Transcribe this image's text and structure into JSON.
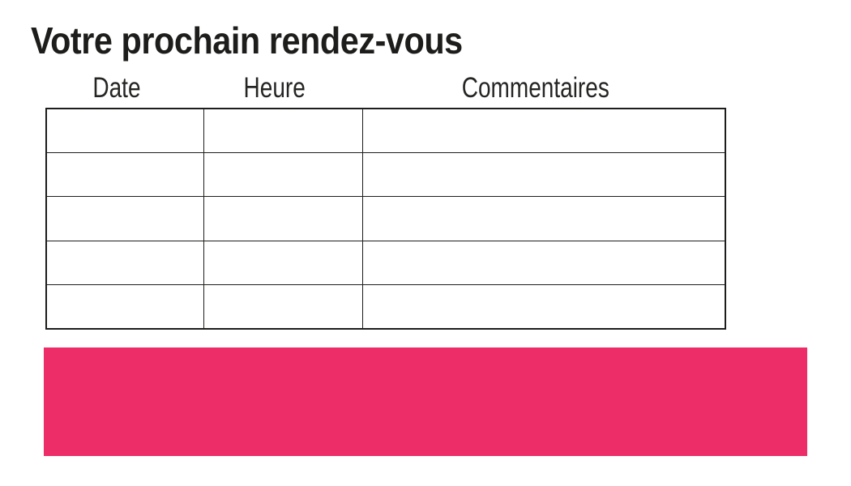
{
  "page": {
    "title": "Votre prochain rendez-vous"
  },
  "appointments_table": {
    "columns": [
      {
        "label": "Date"
      },
      {
        "label": "Heure"
      },
      {
        "label": "Commentaires"
      }
    ],
    "rows": [
      {
        "date": "",
        "heure": "",
        "commentaires": ""
      },
      {
        "date": "",
        "heure": "",
        "commentaires": ""
      },
      {
        "date": "",
        "heure": "",
        "commentaires": ""
      },
      {
        "date": "",
        "heure": "",
        "commentaires": ""
      },
      {
        "date": "",
        "heure": "",
        "commentaires": ""
      }
    ]
  },
  "banner": {
    "color": "#ED2D67"
  },
  "colors": {
    "accent": "#ED2D67",
    "table_border": "#1D1D1B",
    "text": "#1D1D1B",
    "background": "#FFFFFF"
  }
}
